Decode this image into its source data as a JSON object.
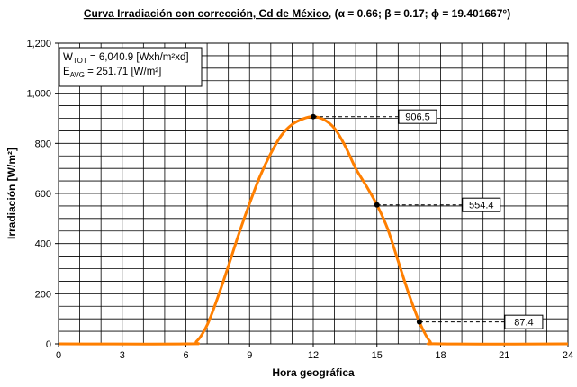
{
  "chart_data": {
    "type": "line",
    "title": {
      "underlined": "Curva Irradiación con corrección, Cd de México",
      "params": ", (α = 0.66; β = 0.17; ϕ = 19.401667°)"
    },
    "xlabel": "Hora geográfica",
    "ylabel": "Irradiación [W/m²]",
    "xlim": [
      0,
      24
    ],
    "ylim": [
      0,
      1200
    ],
    "x_ticks": [
      "0",
      "3",
      "6",
      "9",
      "12",
      "15",
      "18",
      "21",
      "24"
    ],
    "y_ticks": [
      "0",
      "200",
      "400",
      "600",
      "800",
      "1,000",
      "1,200"
    ],
    "grid": true,
    "series": [
      {
        "color": "#FF7F00",
        "x": [
          0,
          6,
          6.5,
          7,
          7.5,
          8,
          8.5,
          9,
          9.5,
          10,
          10.5,
          11,
          11.5,
          12,
          12.5,
          13,
          13.5,
          14,
          14.5,
          15,
          15.5,
          16,
          16.5,
          17,
          17.5,
          18,
          24
        ],
        "y": [
          0,
          0,
          10,
          75,
          185,
          310,
          440,
          560,
          670,
          760,
          832,
          875,
          897,
          906.5,
          895,
          860,
          790,
          700,
          630,
          554.4,
          460,
          330,
          200,
          87.4,
          10,
          0,
          0
        ]
      }
    ],
    "info_box": {
      "w_label": "W",
      "w_sub": "TOT",
      "w_text": " = 6,040.9 [Wxh/m²xd]",
      "e_label": "E",
      "e_sub": "AVG",
      "e_text": " = 251.71 [W/m²]"
    },
    "callouts": [
      {
        "x": 12,
        "y": 906.5,
        "label": "906.5"
      },
      {
        "x": 15,
        "y": 554.4,
        "label": "554.4"
      },
      {
        "x": 17,
        "y": 87.4,
        "label": "87.4"
      }
    ]
  }
}
